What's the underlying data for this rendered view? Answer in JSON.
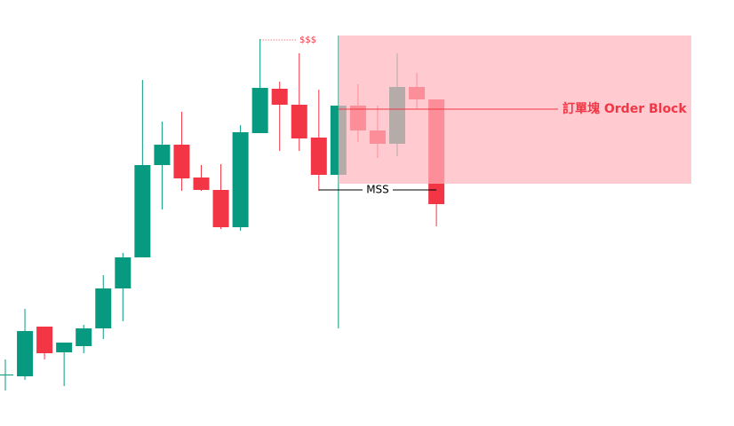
{
  "chart_data": {
    "type": "candlestick",
    "up_color": "#089981",
    "down_color": "#f23645",
    "ylim": [
      0,
      480
    ],
    "open": [
      58,
      56,
      112,
      83,
      90,
      110,
      155,
      190,
      294,
      317,
      280,
      266,
      224,
      330,
      380,
      362,
      325,
      283,
      361,
      333,
      318,
      382,
      368
    ],
    "high": [
      75,
      132,
      112,
      94,
      114,
      170,
      195,
      390,
      343,
      354,
      294,
      295,
      339,
      436,
      388,
      420,
      379,
      440,
      385,
      361,
      420,
      398,
      368
    ],
    "low": [
      40,
      52,
      75,
      45,
      82,
      98,
      118,
      190,
      244,
      265,
      265,
      222,
      220,
      330,
      310,
      310,
      265,
      110,
      320,
      302,
      304,
      358,
      225
    ],
    "close": [
      58,
      107,
      82,
      94,
      110,
      155,
      190,
      294,
      317,
      279,
      266,
      224,
      331,
      381,
      362,
      324,
      283,
      361,
      333,
      318,
      382,
      368,
      250
    ],
    "zone": {
      "top": 440,
      "bottom": 273,
      "color": "#ffb3bc"
    },
    "annotations": [
      {
        "text": "$$$",
        "value": 435,
        "color": "#f23645"
      },
      {
        "text": "MSS",
        "value": 266,
        "color": "#000000"
      },
      {
        "text": "訂單塊 Order Block",
        "value": 357,
        "color": "#f23645"
      }
    ]
  }
}
